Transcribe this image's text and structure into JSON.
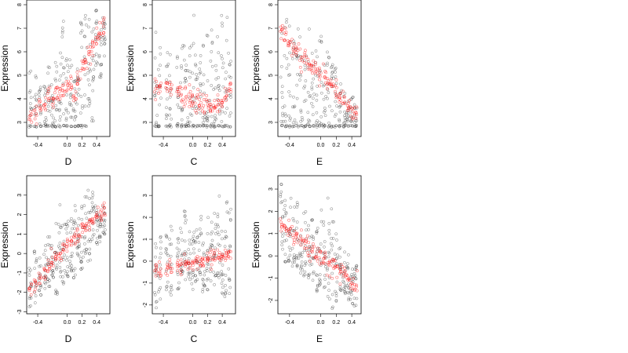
{
  "chart_data": [
    {
      "type": "scatter",
      "panel": "top-left",
      "xlabel": "D",
      "ylabel": "Expression",
      "xlim": [
        -0.55,
        0.58
      ],
      "ylim": [
        2.4,
        8.2
      ],
      "xticks": [
        -0.4,
        0.0,
        0.2,
        0.4
      ],
      "yticks": [
        3,
        4,
        5,
        6,
        7,
        8
      ],
      "x_groups": [
        -0.5,
        -0.43,
        -0.37,
        -0.3,
        -0.25,
        -0.2,
        -0.15,
        -0.1,
        -0.05,
        0.0,
        0.05,
        0.1,
        0.15,
        0.2,
        0.25,
        0.3,
        0.35,
        0.4,
        0.45,
        0.5
      ],
      "series": [
        {
          "color": "#000000",
          "y_range_by_group": [
            [
              2.8,
              5.2
            ],
            [
              2.8,
              5.1
            ],
            [
              2.8,
              4.8
            ],
            [
              2.8,
              4.8
            ],
            [
              2.8,
              5.4
            ],
            [
              2.8,
              5.0
            ],
            [
              2.8,
              6.6
            ],
            [
              2.8,
              6.0
            ],
            [
              2.8,
              7.6
            ],
            [
              2.8,
              5.9
            ],
            [
              2.8,
              6.4
            ],
            [
              2.8,
              4.9
            ],
            [
              2.8,
              6.2
            ],
            [
              2.8,
              7.4
            ],
            [
              2.8,
              7.9
            ],
            [
              3.1,
              7.4
            ],
            [
              3.0,
              7.0
            ],
            [
              4.8,
              7.8
            ],
            [
              4.9,
              7.3
            ],
            [
              5.8,
              7.5
            ]
          ]
        },
        {
          "color": "#ff0000",
          "y_mean_by_group": [
            3.2,
            3.4,
            3.7,
            3.8,
            4.1,
            4.0,
            4.3,
            4.3,
            4.3,
            4.5,
            4.6,
            4.1,
            4.8,
            5.3,
            5.6,
            6.0,
            6.3,
            6.5,
            6.7,
            7.0
          ]
        }
      ]
    },
    {
      "type": "scatter",
      "panel": "top-middle",
      "xlabel": "C",
      "ylabel": "Expression",
      "xlim": [
        -0.55,
        0.58
      ],
      "ylim": [
        2.4,
        8.2
      ],
      "xticks": [
        -0.4,
        0.0,
        0.2,
        0.4
      ],
      "yticks": [
        3,
        4,
        5,
        6,
        7,
        8
      ],
      "x_groups": [
        -0.5,
        -0.45,
        -0.35,
        -0.3,
        -0.2,
        -0.15,
        -0.1,
        -0.05,
        0.0,
        0.05,
        0.1,
        0.15,
        0.2,
        0.25,
        0.3,
        0.35,
        0.4,
        0.45,
        0.5
      ],
      "series": [
        {
          "color": "#000000",
          "y_range_by_group": [
            [
              2.8,
              7.0
            ],
            [
              2.8,
              6.8
            ],
            [
              2.8,
              6.2
            ],
            [
              2.8,
              6.4
            ],
            [
              2.8,
              5.9
            ],
            [
              2.8,
              6.3
            ],
            [
              2.8,
              6.6
            ],
            [
              2.8,
              6.2
            ],
            [
              2.8,
              7.9
            ],
            [
              2.8,
              6.6
            ],
            [
              2.8,
              6.8
            ],
            [
              2.8,
              6.4
            ],
            [
              2.8,
              7.4
            ],
            [
              2.8,
              7.6
            ],
            [
              2.8,
              6.5
            ],
            [
              2.8,
              7.0
            ],
            [
              2.8,
              7.7
            ],
            [
              2.8,
              7.5
            ],
            [
              2.8,
              7.2
            ]
          ]
        },
        {
          "color": "#ff0000",
          "y_mean_by_group": [
            4.6,
            4.5,
            4.5,
            4.4,
            4.3,
            4.2,
            4.1,
            4.0,
            3.9,
            3.9,
            3.8,
            3.7,
            3.7,
            3.6,
            3.6,
            3.7,
            3.9,
            4.2,
            4.5
          ]
        }
      ]
    },
    {
      "type": "scatter",
      "panel": "top-right",
      "xlabel": "E",
      "ylabel": "Expression",
      "xlim": [
        -0.55,
        0.52
      ],
      "ylim": [
        2.4,
        8.2
      ],
      "xticks": [
        -0.4,
        0.0,
        0.2,
        0.4
      ],
      "yticks": [
        3,
        4,
        5,
        6,
        7,
        8
      ],
      "x_groups": [
        -0.5,
        -0.45,
        -0.4,
        -0.35,
        -0.3,
        -0.25,
        -0.2,
        -0.15,
        -0.1,
        -0.05,
        0.0,
        0.05,
        0.1,
        0.15,
        0.2,
        0.25,
        0.3,
        0.35,
        0.4,
        0.45
      ],
      "series": [
        {
          "color": "#000000",
          "y_range_by_group": [
            [
              2.8,
              7.7
            ],
            [
              2.8,
              7.6
            ],
            [
              2.8,
              7.4
            ],
            [
              2.8,
              7.0
            ],
            [
              2.8,
              7.2
            ],
            [
              2.8,
              6.8
            ],
            [
              2.8,
              6.4
            ],
            [
              2.8,
              7.9
            ],
            [
              2.8,
              6.6
            ],
            [
              2.8,
              6.3
            ],
            [
              2.8,
              6.8
            ],
            [
              2.8,
              5.5
            ],
            [
              2.8,
              6.0
            ],
            [
              2.8,
              5.8
            ],
            [
              2.8,
              5.7
            ],
            [
              2.8,
              4.8
            ],
            [
              2.8,
              4.3
            ],
            [
              2.8,
              4.0
            ],
            [
              2.8,
              4.2
            ],
            [
              2.8,
              3.8
            ]
          ]
        },
        {
          "color": "#ff0000",
          "y_mean_by_group": [
            6.8,
            6.6,
            6.4,
            6.2,
            6.0,
            5.8,
            5.7,
            5.5,
            5.4,
            5.2,
            5.0,
            4.9,
            4.7,
            4.5,
            4.3,
            4.1,
            3.9,
            3.7,
            3.5,
            3.3
          ]
        }
      ]
    },
    {
      "type": "scatter",
      "panel": "bottom-left",
      "xlabel": "D",
      "ylabel": "Expression",
      "xlim": [
        -0.55,
        0.58
      ],
      "ylim": [
        -3.1,
        4.0
      ],
      "xticks": [
        -0.4,
        0.0,
        0.2,
        0.4
      ],
      "yticks": [
        -3,
        -2,
        -1,
        0,
        1,
        2,
        3
      ],
      "x_groups": [
        -0.5,
        -0.43,
        -0.37,
        -0.3,
        -0.25,
        -0.2,
        -0.15,
        -0.1,
        -0.05,
        0.0,
        0.05,
        0.1,
        0.15,
        0.2,
        0.25,
        0.3,
        0.35,
        0.4,
        0.45,
        0.5
      ],
      "series": [
        {
          "color": "#000000",
          "y_range_by_group": [
            [
              -2.8,
              -0.6
            ],
            [
              -2.6,
              0.4
            ],
            [
              -2.2,
              0.0
            ],
            [
              -1.8,
              0.6
            ],
            [
              -1.8,
              1.0
            ],
            [
              -1.5,
              0.8
            ],
            [
              -2.2,
              2.2
            ],
            [
              -1.3,
              2.6
            ],
            [
              -1.7,
              1.6
            ],
            [
              -1.2,
              1.8
            ],
            [
              -1.0,
              2.2
            ],
            [
              -1.4,
              2.5
            ],
            [
              -0.6,
              2.2
            ],
            [
              -0.8,
              2.8
            ],
            [
              -0.2,
              3.1
            ],
            [
              -0.4,
              3.7
            ],
            [
              0.2,
              3.2
            ],
            [
              0.4,
              2.6
            ],
            [
              0.6,
              2.4
            ],
            [
              0.9,
              2.6
            ]
          ]
        },
        {
          "color": "#ff0000",
          "y_mean_by_group": [
            -1.9,
            -1.6,
            -1.3,
            -1.0,
            -0.7,
            -0.5,
            -0.2,
            0.0,
            0.2,
            0.4,
            0.6,
            0.8,
            1.0,
            1.2,
            1.4,
            1.5,
            1.7,
            1.9,
            2.0,
            2.1
          ]
        }
      ]
    },
    {
      "type": "scatter",
      "panel": "bottom-middle",
      "xlabel": "C",
      "ylabel": "Expression",
      "xlim": [
        -0.55,
        0.58
      ],
      "ylim": [
        -2.4,
        3.9
      ],
      "xticks": [
        -0.4,
        0.0,
        0.2,
        0.4
      ],
      "yticks": [
        -2,
        -1,
        0,
        1,
        2,
        3
      ],
      "x_groups": [
        -0.5,
        -0.45,
        -0.35,
        -0.3,
        -0.2,
        -0.15,
        -0.1,
        -0.05,
        0.0,
        0.05,
        0.1,
        0.15,
        0.2,
        0.25,
        0.3,
        0.35,
        0.4,
        0.45,
        0.5
      ],
      "series": [
        {
          "color": "#000000",
          "y_range_by_group": [
            [
              -2.2,
              1.3
            ],
            [
              -1.8,
              1.6
            ],
            [
              -1.4,
              1.3
            ],
            [
              -1.6,
              1.8
            ],
            [
              -1.3,
              1.2
            ],
            [
              -1.1,
              1.5
            ],
            [
              -1.0,
              2.4
            ],
            [
              -0.9,
              1.6
            ],
            [
              -1.3,
              1.4
            ],
            [
              -1.2,
              1.7
            ],
            [
              -0.8,
              2.2
            ],
            [
              -1.4,
              1.8
            ],
            [
              -1.6,
              2.0
            ],
            [
              -0.9,
              1.9
            ],
            [
              -1.2,
              2.2
            ],
            [
              -1.0,
              3.6
            ],
            [
              -1.7,
              1.8
            ],
            [
              -1.9,
              2.9
            ],
            [
              -1.5,
              2.5
            ]
          ]
        },
        {
          "color": "#ff0000",
          "y_mean_by_group": [
            -0.45,
            -0.4,
            -0.35,
            -0.3,
            -0.25,
            -0.2,
            -0.15,
            -0.1,
            -0.05,
            0.0,
            0.05,
            0.1,
            0.12,
            0.15,
            0.18,
            0.2,
            0.25,
            0.3,
            0.35
          ]
        }
      ]
    },
    {
      "type": "scatter",
      "panel": "bottom-right",
      "xlabel": "E",
      "ylabel": "Expression",
      "xlim": [
        -0.55,
        0.52
      ],
      "ylim": [
        -2.6,
        3.6
      ],
      "xticks": [
        -0.4,
        0.0,
        0.2,
        0.4
      ],
      "yticks": [
        -2,
        -1,
        0,
        1,
        2,
        3
      ],
      "x_groups": [
        -0.5,
        -0.45,
        -0.4,
        -0.35,
        -0.3,
        -0.25,
        -0.2,
        -0.15,
        -0.1,
        -0.05,
        0.0,
        0.05,
        0.1,
        0.15,
        0.2,
        0.25,
        0.3,
        0.35,
        0.4,
        0.45
      ],
      "series": [
        {
          "color": "#000000",
          "y_range_by_group": [
            [
              0.2,
              3.3
            ],
            [
              -0.4,
              3.0
            ],
            [
              -0.3,
              2.6
            ],
            [
              -0.6,
              2.2
            ],
            [
              -0.6,
              2.4
            ],
            [
              -0.8,
              1.8
            ],
            [
              -0.9,
              2.3
            ],
            [
              -1.0,
              1.6
            ],
            [
              -1.2,
              1.8
            ],
            [
              -1.6,
              1.3
            ],
            [
              -1.4,
              2.4
            ],
            [
              -1.6,
              1.6
            ],
            [
              -2.0,
              3.1
            ],
            [
              -2.4,
              2.2
            ],
            [
              -2.1,
              1.4
            ],
            [
              -1.6,
              0.6
            ],
            [
              -1.8,
              0.3
            ],
            [
              -2.0,
              0.1
            ],
            [
              -2.2,
              -0.2
            ],
            [
              -2.3,
              -0.4
            ]
          ]
        },
        {
          "color": "#ff0000",
          "y_mean_by_group": [
            1.4,
            1.25,
            1.1,
            0.95,
            0.8,
            0.65,
            0.5,
            0.35,
            0.2,
            0.05,
            -0.1,
            -0.25,
            -0.4,
            -0.5,
            -0.6,
            -0.7,
            -0.8,
            -0.95,
            -1.1,
            -1.25
          ]
        }
      ]
    }
  ]
}
